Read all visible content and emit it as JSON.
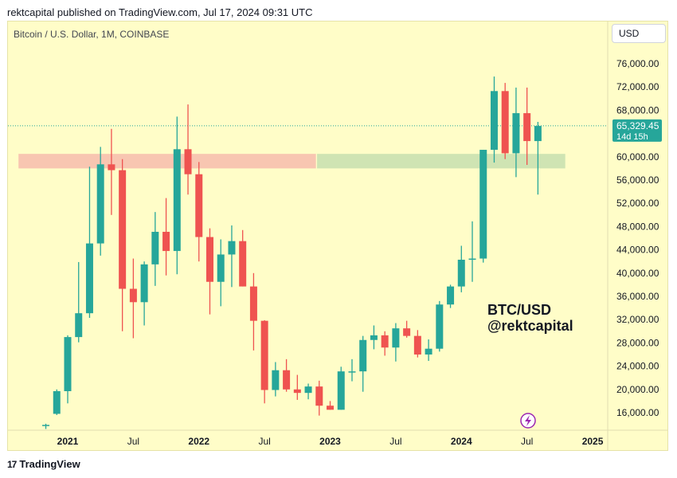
{
  "header": {
    "text": "rektcapital published on TradingView.com, Jul 17, 2024 09:31 UTC"
  },
  "toolbar": {
    "currency_label": "USD"
  },
  "footer": {
    "logo_text": "TradingView"
  },
  "colors": {
    "background": "#fffdc8",
    "up_candle": "#26a69a",
    "down_candle": "#ef5350",
    "resistance_zone": "#f8c3b0",
    "support_zone": "#cce3b2",
    "last_price_label": "#26a69a",
    "lightning_icon": "#9c27b0"
  },
  "chart_data": {
    "type": "candlestick",
    "title": "Bitcoin / U.S. Dollar, 1M, COINBASE",
    "watermark_text": [
      "BTC/USD",
      "@rektcapital"
    ],
    "ylim": [
      14000,
      78000
    ],
    "y_ticks": [
      "16,000.00",
      "20,000.00",
      "24,000.00",
      "28,000.00",
      "32,000.00",
      "36,000.00",
      "40,000.00",
      "44,000.00",
      "48,000.00",
      "52,000.00",
      "56,000.00",
      "60,000.00",
      "64,000.00",
      "68,000.00",
      "72,000.00",
      "76,000.00"
    ],
    "x_ticks": [
      {
        "label": "2021",
        "month": 6
      },
      {
        "label": "Jul",
        "month": 12
      },
      {
        "label": "2022",
        "month": 18
      },
      {
        "label": "Jul",
        "month": 24
      },
      {
        "label": "2023",
        "month": 30
      },
      {
        "label": "Jul",
        "month": 36
      },
      {
        "label": "2024",
        "month": 42
      },
      {
        "label": "Jul",
        "month": 48
      },
      {
        "label": "2025",
        "month": 54
      }
    ],
    "last_price": {
      "value": 65329.45,
      "label": "65,329.45",
      "countdown": "14d 15h"
    },
    "zones": [
      {
        "name": "resistance",
        "from_month": 1.5,
        "to_month": 28.7,
        "low": 58000,
        "high": 60500
      },
      {
        "name": "support",
        "from_month": 28.8,
        "to_month": 51.5,
        "low": 58000,
        "high": 60500
      }
    ],
    "candles": [
      {
        "month": 4,
        "open": 13800,
        "high": 14100,
        "low": 13200,
        "close": 13900
      },
      {
        "month": 5,
        "open": 15800,
        "high": 20000,
        "low": 15600,
        "close": 19700
      },
      {
        "month": 6,
        "open": 19700,
        "high": 29300,
        "low": 17600,
        "close": 29000
      },
      {
        "month": 7,
        "open": 29000,
        "high": 41900,
        "low": 28100,
        "close": 33100
      },
      {
        "month": 8,
        "open": 33100,
        "high": 58300,
        "low": 32300,
        "close": 45100
      },
      {
        "month": 9,
        "open": 45100,
        "high": 61700,
        "low": 43000,
        "close": 58700
      },
      {
        "month": 10,
        "open": 58700,
        "high": 64800,
        "low": 50000,
        "close": 57700
      },
      {
        "month": 11,
        "open": 57700,
        "high": 59600,
        "low": 30000,
        "close": 37300
      },
      {
        "month": 12,
        "open": 37300,
        "high": 42500,
        "low": 28800,
        "close": 35000
      },
      {
        "month": 13,
        "open": 35000,
        "high": 42000,
        "low": 31000,
        "close": 41500
      },
      {
        "month": 14,
        "open": 41500,
        "high": 50500,
        "low": 37800,
        "close": 47100
      },
      {
        "month": 15,
        "open": 47100,
        "high": 52900,
        "low": 39600,
        "close": 43800
      },
      {
        "month": 16,
        "open": 43800,
        "high": 66900,
        "low": 39800,
        "close": 61300
      },
      {
        "month": 17,
        "open": 61300,
        "high": 69000,
        "low": 53500,
        "close": 57000
      },
      {
        "month": 18,
        "open": 57000,
        "high": 59100,
        "low": 42000,
        "close": 46200
      },
      {
        "month": 19,
        "open": 46200,
        "high": 47700,
        "low": 32900,
        "close": 38500
      },
      {
        "month": 20,
        "open": 38500,
        "high": 45800,
        "low": 34300,
        "close": 43200
      },
      {
        "month": 21,
        "open": 43200,
        "high": 48200,
        "low": 37600,
        "close": 45500
      },
      {
        "month": 22,
        "open": 45500,
        "high": 47400,
        "low": 37700,
        "close": 37700
      },
      {
        "month": 23,
        "open": 37700,
        "high": 40000,
        "low": 26700,
        "close": 31800
      },
      {
        "month": 24,
        "open": 31800,
        "high": 31900,
        "low": 17600,
        "close": 19900
      },
      {
        "month": 25,
        "open": 19900,
        "high": 24700,
        "low": 18800,
        "close": 23300
      },
      {
        "month": 26,
        "open": 23300,
        "high": 25200,
        "low": 19600,
        "close": 20000
      },
      {
        "month": 27,
        "open": 20000,
        "high": 22500,
        "low": 18200,
        "close": 19400
      },
      {
        "month": 28,
        "open": 19400,
        "high": 21000,
        "low": 18300,
        "close": 20500
      },
      {
        "month": 29,
        "open": 20500,
        "high": 21500,
        "low": 15500,
        "close": 17200
      },
      {
        "month": 30,
        "open": 17200,
        "high": 18000,
        "low": 16500,
        "close": 16500
      },
      {
        "month": 31,
        "open": 16500,
        "high": 23900,
        "low": 16500,
        "close": 23100
      },
      {
        "month": 32,
        "open": 23100,
        "high": 25200,
        "low": 21400,
        "close": 23100
      },
      {
        "month": 33,
        "open": 23100,
        "high": 29200,
        "low": 19600,
        "close": 28500
      },
      {
        "month": 34,
        "open": 28500,
        "high": 31000,
        "low": 26900,
        "close": 29300
      },
      {
        "month": 35,
        "open": 29300,
        "high": 30000,
        "low": 25800,
        "close": 27200
      },
      {
        "month": 36,
        "open": 27200,
        "high": 31400,
        "low": 24800,
        "close": 30500
      },
      {
        "month": 37,
        "open": 30500,
        "high": 31800,
        "low": 28900,
        "close": 29200
      },
      {
        "month": 38,
        "open": 29200,
        "high": 30200,
        "low": 25500,
        "close": 26000
      },
      {
        "month": 39,
        "open": 26000,
        "high": 28600,
        "low": 24900,
        "close": 27000
      },
      {
        "month": 40,
        "open": 27000,
        "high": 35200,
        "low": 26500,
        "close": 34600
      },
      {
        "month": 41,
        "open": 34600,
        "high": 38000,
        "low": 34000,
        "close": 37700
      },
      {
        "month": 42,
        "open": 37700,
        "high": 44700,
        "low": 36700,
        "close": 42300
      },
      {
        "month": 43,
        "open": 42300,
        "high": 48900,
        "low": 38500,
        "close": 42500
      },
      {
        "month": 44,
        "open": 42500,
        "high": 61200,
        "low": 41800,
        "close": 61200
      },
      {
        "month": 45,
        "open": 61200,
        "high": 73800,
        "low": 59000,
        "close": 71300
      },
      {
        "month": 46,
        "open": 71300,
        "high": 72700,
        "low": 59600,
        "close": 60600
      },
      {
        "month": 47,
        "open": 60600,
        "high": 71900,
        "low": 56500,
        "close": 67500
      },
      {
        "month": 48,
        "open": 67500,
        "high": 71900,
        "low": 58600,
        "close": 62700
      },
      {
        "month": 49,
        "open": 62700,
        "high": 66000,
        "low": 53500,
        "close": 65300
      }
    ]
  }
}
